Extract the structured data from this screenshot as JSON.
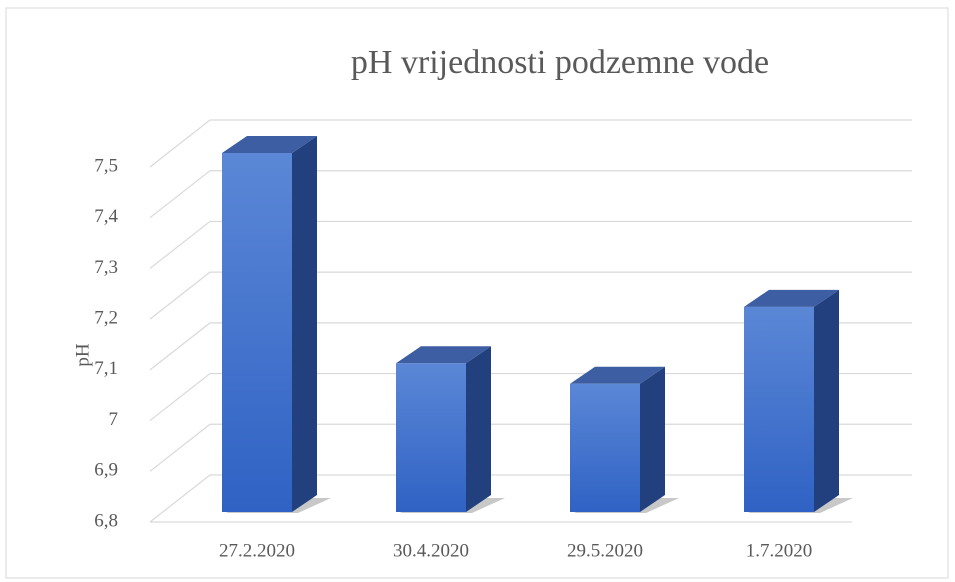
{
  "chart_data": {
    "type": "bar",
    "title": "pH vrijednosti podzemne vode",
    "y_label": "pH",
    "categories": [
      "27.2.2020",
      "30.4.2020",
      "29.5.2020",
      "1.7.2020"
    ],
    "values": [
      7.5,
      7.09,
      7.05,
      7.2
    ],
    "color": "#3f6fcf",
    "ylim": [
      6.8,
      7.5
    ],
    "yticks": [
      {
        "value": 6.8,
        "label": "6,8"
      },
      {
        "value": 6.9,
        "label": "6,9"
      },
      7,
      {
        "value": 7.1,
        "label": "7,1"
      },
      {
        "value": 7.2,
        "label": "7,2"
      },
      {
        "value": 7.3,
        "label": "7,3"
      },
      {
        "value": 7.4,
        "label": "7,4"
      },
      {
        "value": 7.5,
        "label": "7,5"
      }
    ],
    "grid": true
  }
}
